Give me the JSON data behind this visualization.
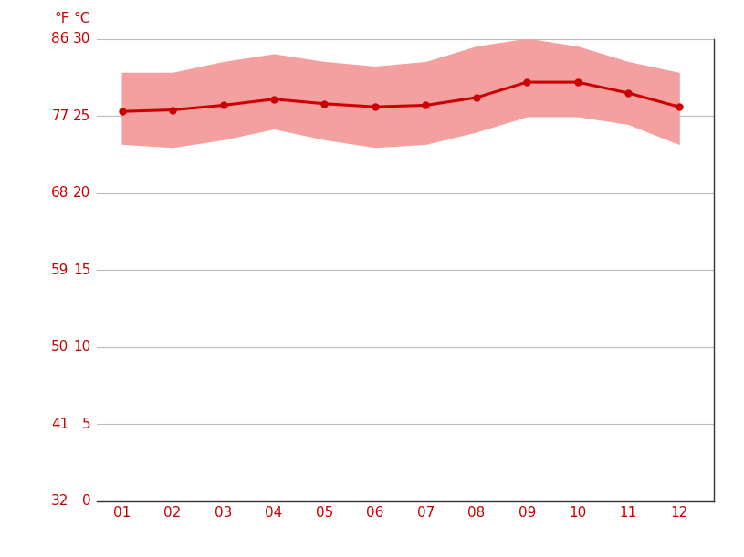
{
  "months": [
    1,
    2,
    3,
    4,
    5,
    6,
    7,
    8,
    9,
    10,
    11,
    12
  ],
  "month_labels": [
    "01",
    "02",
    "03",
    "04",
    "05",
    "06",
    "07",
    "08",
    "09",
    "10",
    "11",
    "12"
  ],
  "avg_temp_c": [
    25.3,
    25.4,
    25.7,
    26.1,
    25.8,
    25.6,
    25.7,
    26.2,
    27.2,
    27.2,
    26.5,
    25.6
  ],
  "max_temp_c": [
    27.8,
    27.8,
    28.5,
    29.0,
    28.5,
    28.2,
    28.5,
    29.5,
    30.0,
    29.5,
    28.5,
    27.8
  ],
  "min_temp_c": [
    23.2,
    23.0,
    23.5,
    24.2,
    23.5,
    23.0,
    23.2,
    24.0,
    25.0,
    25.0,
    24.5,
    23.2
  ],
  "line_color": "#cc0000",
  "band_color": "#f5a0a0",
  "grid_color": "#bbbbbb",
  "text_color": "#cc0000",
  "background_color": "#ffffff",
  "ylim_c": [
    0,
    30
  ],
  "yticks_c": [
    0,
    5,
    10,
    15,
    20,
    25,
    30
  ],
  "yticks_f": [
    32,
    41,
    50,
    59,
    68,
    77,
    86
  ],
  "ylabel_c": "°C",
  "ylabel_f": "°F",
  "tick_fontsize": 11,
  "label_fontsize": 11
}
